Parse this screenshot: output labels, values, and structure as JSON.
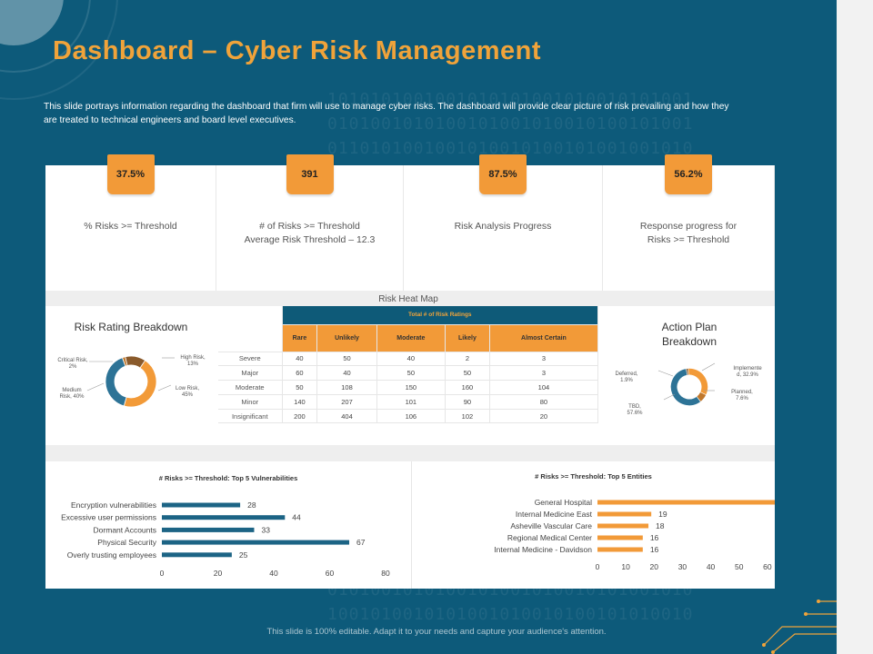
{
  "title": "Dashboard – Cyber Risk Management",
  "description": "This slide portrays information regarding the dashboard that firm will use to manage cyber risks. The dashboard will provide clear picture of risk prevailing and how they are treated to technical engineers and board level executives.",
  "kpis": [
    {
      "value": "37.5%",
      "label": "% Risks >= Threshold"
    },
    {
      "value": "391",
      "label": "# of Risks >= Threshold",
      "label2": "Average Risk Threshold – 12.3"
    },
    {
      "value": "87.5%",
      "label": "Risk Analysis Progress"
    },
    {
      "value": "56.2%",
      "label": "Response progress for",
      "label2": "Risks >= Threshold"
    }
  ],
  "heat_map": {
    "title": "Risk Heat Map",
    "group_header": "Total # of Risk Ratings",
    "columns": [
      "Rare",
      "Unlikely",
      "Moderate",
      "Likely",
      "Almost Certain"
    ],
    "rows": [
      {
        "label": "Severe",
        "values": [
          "40",
          "50",
          "40",
          "2",
          "3"
        ]
      },
      {
        "label": "Major",
        "values": [
          "60",
          "40",
          "50",
          "50",
          "3"
        ]
      },
      {
        "label": "Moderate",
        "values": [
          "50",
          "108",
          "150",
          "160",
          "104"
        ]
      },
      {
        "label": "Minor",
        "values": [
          "140",
          "207",
          "101",
          "90",
          "80"
        ]
      },
      {
        "label": "Insignificant",
        "values": [
          "200",
          "404",
          "106",
          "102",
          "20"
        ]
      }
    ]
  },
  "risk_rating": {
    "title": "Risk Rating Breakdown",
    "labels": [
      {
        "name": "Critical Risk,",
        "value": "2%"
      },
      {
        "name": "High Risk,",
        "value": "13%"
      },
      {
        "name": "Low Risk,",
        "value": "45%"
      },
      {
        "name": "Medium Risk, 40%",
        "value": ""
      }
    ]
  },
  "action_plan": {
    "title_line1": "Action Plan",
    "title_line2": "Breakdown",
    "labels": [
      {
        "name": "Deferred,",
        "value": "1.9%"
      },
      {
        "name": "Implemente",
        "value": "d, 32.9%"
      },
      {
        "name": "Planned,",
        "value": "7.6%"
      },
      {
        "name": "TBD,",
        "value": "57.6%"
      }
    ]
  },
  "chart_data": [
    {
      "type": "pie",
      "title": "Risk Rating Breakdown",
      "categories": [
        "Critical Risk",
        "High Risk",
        "Low Risk",
        "Medium Risk"
      ],
      "values": [
        2,
        13,
        45,
        40
      ],
      "colors": [
        "#c0772b",
        "#8a5a2b",
        "#f29a38",
        "#2d7396"
      ]
    },
    {
      "type": "pie",
      "title": "Action Plan Breakdown",
      "categories": [
        "Deferred",
        "Implemented",
        "Planned",
        "TBD"
      ],
      "values": [
        1.9,
        32.9,
        7.6,
        57.6
      ],
      "colors": [
        "#8a5a2b",
        "#f29a38",
        "#c0772b",
        "#2d7396"
      ]
    },
    {
      "type": "bar",
      "orientation": "horizontal",
      "title": "# Risks >= Threshold: Top 5 Vulnerabilities",
      "categories": [
        "Encryption vulnerabilities",
        "Excessive user permissions",
        "Dormant Accounts",
        "Physical Security",
        "Overly trusting employees"
      ],
      "values": [
        28,
        44,
        33,
        67,
        25
      ],
      "xlim": [
        0,
        80
      ],
      "ticks": [
        "0",
        "20",
        "40",
        "60",
        "80"
      ],
      "color": "#1c6485"
    },
    {
      "type": "bar",
      "orientation": "horizontal",
      "title": "# Risks >= Threshold: Top 5 Entities",
      "categories": [
        "General Hospital",
        "Internal Medicine East",
        "Asheville Vascular Care",
        "Regional Medical Center",
        "Internal Medicine - Davidson"
      ],
      "values": [
        66,
        19,
        18,
        16,
        16
      ],
      "xlim": [
        0,
        70
      ],
      "ticks": [
        "0",
        "10",
        "20",
        "30",
        "40",
        "50",
        "60",
        "70"
      ],
      "color": "#f29a38"
    }
  ],
  "footer": "This slide is 100% editable. Adapt it to your needs and capture your audience's attention."
}
